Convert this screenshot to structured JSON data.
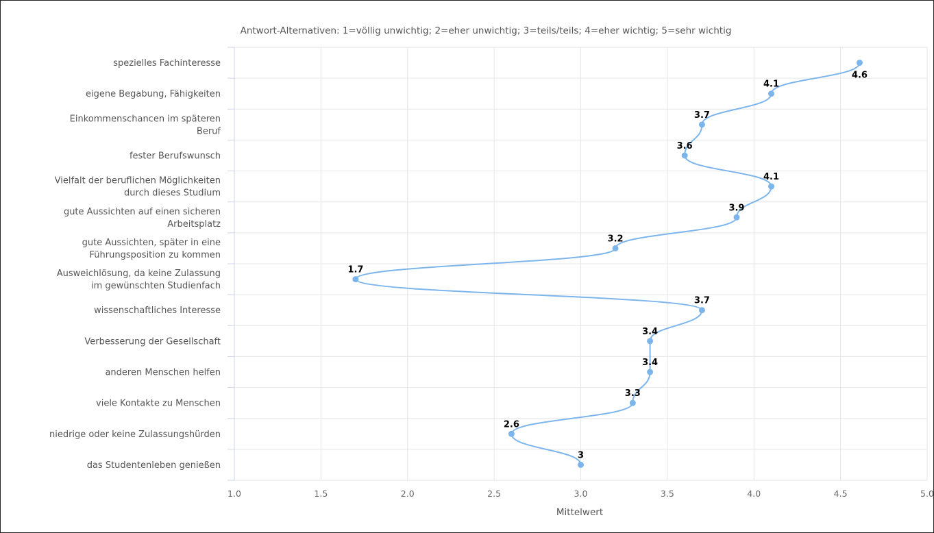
{
  "chart_data": {
    "type": "line",
    "orientation": "horizontal",
    "title": "",
    "subtitle": "Antwort-Alternativen: 1=völlig unwichtig; 2=eher unwichtig; 3=teils/teils; 4=eher wichtig; 5=sehr wichtig",
    "xlabel": "Mittelwert",
    "ylabel": "",
    "xlim": [
      1.0,
      5.0
    ],
    "xticks": [
      "1.0",
      "1.5",
      "2.0",
      "2.5",
      "3.0",
      "3.5",
      "4.0",
      "4.5",
      "5.0"
    ],
    "grid": true,
    "legend": "none",
    "color": "#7cb5ec",
    "categories": [
      [
        "spezielles Fachinteresse"
      ],
      [
        "eigene Begabung, Fähigkeiten"
      ],
      [
        "Einkommenschancen im späteren",
        "Beruf"
      ],
      [
        "fester Berufswunsch"
      ],
      [
        "Vielfalt der beruflichen Möglichkeiten",
        "durch dieses Studium"
      ],
      [
        "gute Aussichten auf einen sicheren",
        "Arbeitsplatz"
      ],
      [
        "gute Aussichten, später in eine",
        "Führungsposition zu kommen"
      ],
      [
        "Ausweichlösung, da keine Zulassung",
        "im gewünschten Studienfach"
      ],
      [
        "wissenschaftliches Interesse"
      ],
      [
        "Verbesserung der Gesellschaft"
      ],
      [
        "anderen Menschen helfen"
      ],
      [
        "viele Kontakte zu Menschen"
      ],
      [
        "niedrige oder keine Zulassungshürden"
      ],
      [
        "das Studentenleben genießen"
      ]
    ],
    "values": [
      4.61,
      4.1,
      3.7,
      3.6,
      4.1,
      3.9,
      3.2,
      1.7,
      3.7,
      3.4,
      3.4,
      3.3,
      2.6,
      3.0
    ],
    "data_labels": [
      "4.6",
      "4.1",
      "3.7",
      "3.6",
      "4.1",
      "3.9",
      "3.2",
      "1.7",
      "3.7",
      "3.4",
      "3.4",
      "3.3",
      "2.6",
      "3"
    ]
  }
}
